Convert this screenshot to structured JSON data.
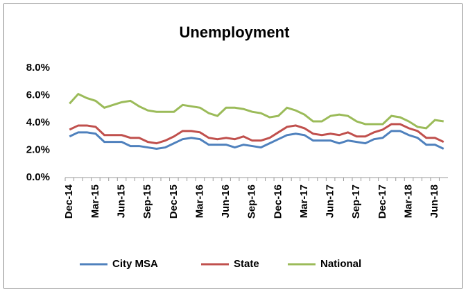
{
  "chart_data": {
    "type": "line",
    "title": "Unemployment",
    "categories": [
      "Dec-14",
      null,
      null,
      "Mar-15",
      null,
      null,
      "Jun-15",
      null,
      null,
      "Sep-15",
      null,
      null,
      "Dec-15",
      null,
      null,
      "Mar-16",
      null,
      null,
      "Jun-16",
      null,
      null,
      "Sep-16",
      null,
      null,
      "Dec-16",
      null,
      null,
      "Mar-17",
      null,
      null,
      "Jun-17",
      null,
      null,
      "Sep-17",
      null,
      null,
      "Dec-17",
      null,
      null,
      "Mar-18",
      null,
      null,
      "Jun-18",
      null
    ],
    "series": [
      {
        "name": "City MSA",
        "color": "#4f81bd",
        "values": [
          3.0,
          3.3,
          3.3,
          3.2,
          2.6,
          2.6,
          2.6,
          2.3,
          2.3,
          2.2,
          2.1,
          2.2,
          2.5,
          2.8,
          2.9,
          2.8,
          2.4,
          2.4,
          2.4,
          2.2,
          2.4,
          2.3,
          2.2,
          2.5,
          2.8,
          3.1,
          3.2,
          3.1,
          2.7,
          2.7,
          2.7,
          2.5,
          2.7,
          2.6,
          2.5,
          2.8,
          2.9,
          3.4,
          3.4,
          3.1,
          2.9,
          2.4,
          2.4,
          2.1
        ]
      },
      {
        "name": "State",
        "color": "#c0504d",
        "values": [
          3.5,
          3.8,
          3.8,
          3.7,
          3.1,
          3.1,
          3.1,
          2.9,
          2.9,
          2.6,
          2.5,
          2.7,
          3.0,
          3.4,
          3.4,
          3.3,
          2.9,
          2.8,
          2.9,
          2.8,
          3.0,
          2.7,
          2.7,
          2.9,
          3.3,
          3.7,
          3.8,
          3.6,
          3.2,
          3.1,
          3.2,
          3.1,
          3.3,
          3.0,
          3.0,
          3.3,
          3.5,
          3.9,
          3.9,
          3.6,
          3.4,
          2.9,
          2.9,
          2.6
        ]
      },
      {
        "name": "National",
        "color": "#9bbb59",
        "values": [
          5.4,
          6.1,
          5.8,
          5.6,
          5.1,
          5.3,
          5.5,
          5.6,
          5.2,
          4.9,
          4.8,
          4.8,
          4.8,
          5.3,
          5.2,
          5.1,
          4.7,
          4.5,
          5.1,
          5.1,
          5.0,
          4.8,
          4.7,
          4.4,
          4.5,
          5.1,
          4.9,
          4.6,
          4.1,
          4.1,
          4.5,
          4.6,
          4.5,
          4.1,
          3.9,
          3.9,
          3.9,
          4.5,
          4.4,
          4.1,
          3.7,
          3.6,
          4.2,
          4.1
        ]
      }
    ],
    "ylim": [
      0,
      8
    ],
    "yticks": [
      {
        "value": 0,
        "label": "0.0%"
      },
      {
        "value": 2,
        "label": "2.0%"
      },
      {
        "value": 4,
        "label": "4.0%"
      },
      {
        "value": 6,
        "label": "6.0%"
      },
      {
        "value": 8,
        "label": "8.0%"
      }
    ],
    "grid": false,
    "legend": "bottom"
  }
}
